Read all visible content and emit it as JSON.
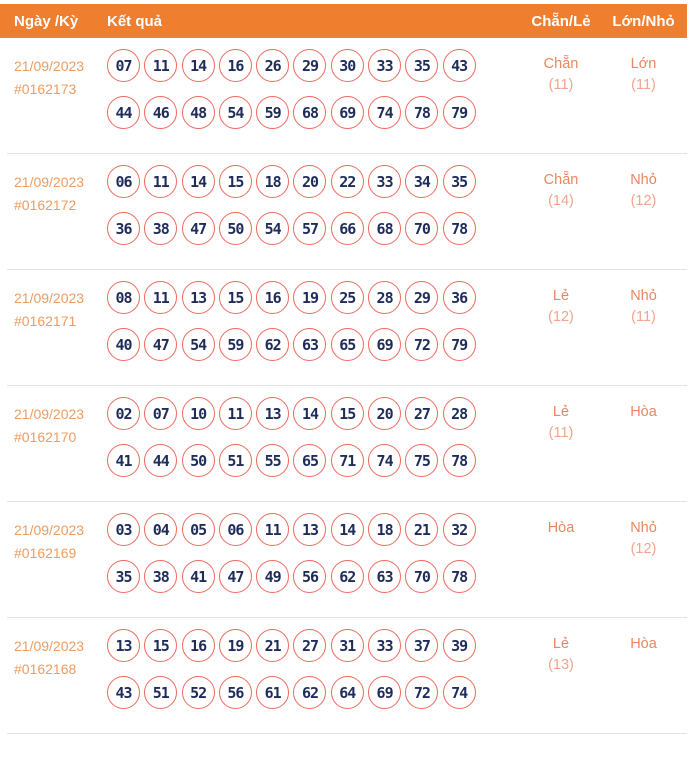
{
  "header": {
    "col_date": "Ngày /Kỳ",
    "col_result": "Kết quả",
    "col_even_odd": "Chẵn/Lẻ",
    "col_big_small": "Lớn/Nhỏ"
  },
  "colors": {
    "header_bg": "#EF7F2E",
    "header_text": "#FFFFFF",
    "date_text": "#ED9C62",
    "ball_border": "#ED6A5F",
    "ball_text": "#1F2C5A",
    "value_label": "#EA8760",
    "value_count": "#F0A58B",
    "divider": "#E3E3E3"
  },
  "rows": [
    {
      "date": "21/09/2023",
      "draw_id": "#0162173",
      "numbers_line1": [
        "07",
        "11",
        "14",
        "16",
        "26",
        "29",
        "30",
        "33",
        "35",
        "43"
      ],
      "numbers_line2": [
        "44",
        "46",
        "48",
        "54",
        "59",
        "68",
        "69",
        "74",
        "78",
        "79"
      ],
      "even_odd": "Chẵn",
      "even_odd_count": "(11)",
      "big_small": "Lớn",
      "big_small_count": "(11)"
    },
    {
      "date": "21/09/2023",
      "draw_id": "#0162172",
      "numbers_line1": [
        "06",
        "11",
        "14",
        "15",
        "18",
        "20",
        "22",
        "33",
        "34",
        "35"
      ],
      "numbers_line2": [
        "36",
        "38",
        "47",
        "50",
        "54",
        "57",
        "66",
        "68",
        "70",
        "78"
      ],
      "even_odd": "Chẵn",
      "even_odd_count": "(14)",
      "big_small": "Nhỏ",
      "big_small_count": "(12)"
    },
    {
      "date": "21/09/2023",
      "draw_id": "#0162171",
      "numbers_line1": [
        "08",
        "11",
        "13",
        "15",
        "16",
        "19",
        "25",
        "28",
        "29",
        "36"
      ],
      "numbers_line2": [
        "40",
        "47",
        "54",
        "59",
        "62",
        "63",
        "65",
        "69",
        "72",
        "79"
      ],
      "even_odd": "Lẻ",
      "even_odd_count": "(12)",
      "big_small": "Nhỏ",
      "big_small_count": "(11)"
    },
    {
      "date": "21/09/2023",
      "draw_id": "#0162170",
      "numbers_line1": [
        "02",
        "07",
        "10",
        "11",
        "13",
        "14",
        "15",
        "20",
        "27",
        "28"
      ],
      "numbers_line2": [
        "41",
        "44",
        "50",
        "51",
        "55",
        "65",
        "71",
        "74",
        "75",
        "78"
      ],
      "even_odd": "Lẻ",
      "even_odd_count": "(11)",
      "big_small": "Hòa",
      "big_small_count": ""
    },
    {
      "date": "21/09/2023",
      "draw_id": "#0162169",
      "numbers_line1": [
        "03",
        "04",
        "05",
        "06",
        "11",
        "13",
        "14",
        "18",
        "21",
        "32"
      ],
      "numbers_line2": [
        "35",
        "38",
        "41",
        "47",
        "49",
        "56",
        "62",
        "63",
        "70",
        "78"
      ],
      "even_odd": "Hòa",
      "even_odd_count": "",
      "big_small": "Nhỏ",
      "big_small_count": "(12)"
    },
    {
      "date": "21/09/2023",
      "draw_id": "#0162168",
      "numbers_line1": [
        "13",
        "15",
        "16",
        "19",
        "21",
        "27",
        "31",
        "33",
        "37",
        "39"
      ],
      "numbers_line2": [
        "43",
        "51",
        "52",
        "56",
        "61",
        "62",
        "64",
        "69",
        "72",
        "74"
      ],
      "even_odd": "Lẻ",
      "even_odd_count": "(13)",
      "big_small": "Hòa",
      "big_small_count": ""
    }
  ]
}
